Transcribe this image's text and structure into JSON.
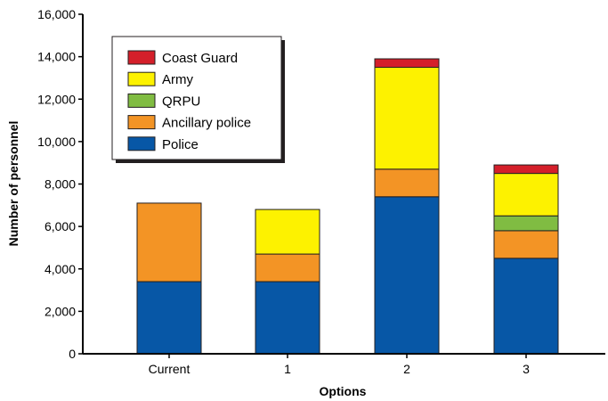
{
  "chart_data": {
    "type": "bar",
    "stacked": true,
    "categories": [
      "Current",
      "1",
      "2",
      "3"
    ],
    "xlabel": "Options",
    "ylabel": "Number of personnel",
    "ylim": [
      0,
      16000
    ],
    "yticks": [
      0,
      2000,
      4000,
      6000,
      8000,
      10000,
      12000,
      14000,
      16000
    ],
    "ytick_labels": [
      "0",
      "2,000",
      "4,000",
      "6,000",
      "8,000",
      "10,000",
      "12,000",
      "14,000",
      "16,000"
    ],
    "grid": false,
    "legend_position": "top-left",
    "series": [
      {
        "name": "Police",
        "color": "#0757a6",
        "values": [
          3400,
          3400,
          7400,
          4500
        ]
      },
      {
        "name": "Ancillary police",
        "color": "#f39425",
        "values": [
          3700,
          1300,
          1300,
          1300
        ]
      },
      {
        "name": "QRPU",
        "color": "#80bc42",
        "values": [
          0,
          0,
          0,
          700
        ]
      },
      {
        "name": "Army",
        "color": "#fdf200",
        "values": [
          0,
          2100,
          4800,
          2000
        ]
      },
      {
        "name": "Coast Guard",
        "color": "#d41f2a",
        "values": [
          0,
          0,
          400,
          400
        ]
      }
    ],
    "legend_order": [
      "Coast Guard",
      "Army",
      "QRPU",
      "Ancillary police",
      "Police"
    ]
  }
}
